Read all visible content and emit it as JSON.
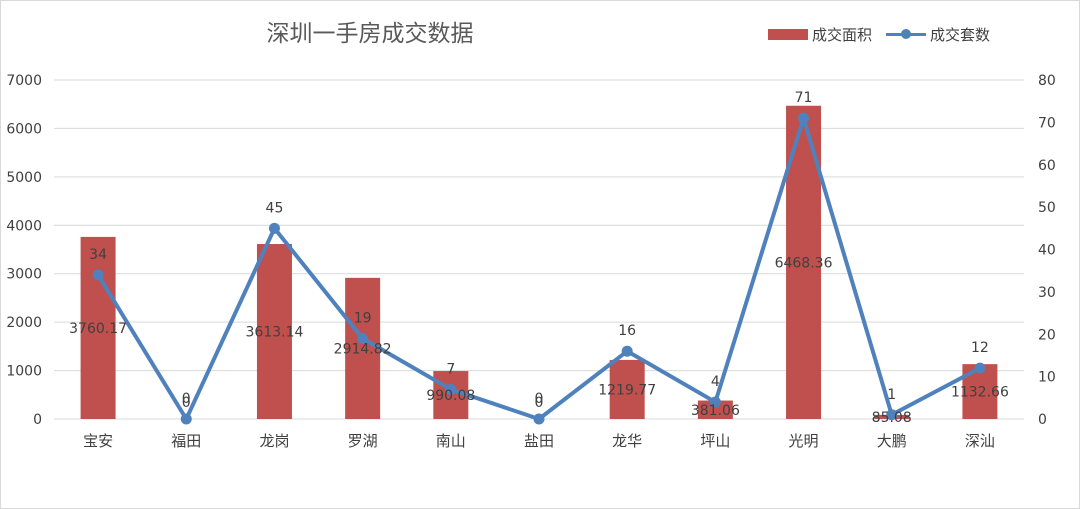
{
  "title": "深圳一手房成交数据",
  "legend": {
    "area_label": "成交面积",
    "count_label": "成交套数"
  },
  "colors": {
    "bar": "#c0504d",
    "line": "#4f81bd",
    "grid": "#d9d9d9",
    "text": "#404040"
  },
  "chart_data": {
    "type": "bar+line",
    "title": "深圳一手房成交数据",
    "categories": [
      "宝安",
      "福田",
      "龙岗",
      "罗湖",
      "南山",
      "盐田",
      "龙华",
      "坪山",
      "光明",
      "大鹏",
      "深汕"
    ],
    "y_left": {
      "ylim": [
        0,
        7000
      ],
      "ticks": [
        0,
        1000,
        2000,
        3000,
        4000,
        5000,
        6000,
        7000
      ]
    },
    "y_right": {
      "ylim": [
        0,
        80
      ],
      "ticks": [
        0,
        10,
        20,
        30,
        40,
        50,
        60,
        70,
        80
      ]
    },
    "grid": true,
    "legend_position": "top-right",
    "series": [
      {
        "name": "成交面积",
        "type": "bar",
        "axis": "left",
        "values": [
          3760.17,
          0,
          3613.14,
          2914.82,
          990.08,
          0,
          1219.77,
          381.06,
          6468.36,
          85.08,
          1132.66
        ],
        "labels": [
          "3760.17",
          "0",
          "3613.14",
          "2914.82",
          "990.08",
          "0",
          "1219.77",
          "381.06",
          "6468.36",
          "85.08",
          "1132.66"
        ]
      },
      {
        "name": "成交套数",
        "type": "line",
        "axis": "right",
        "values": [
          34,
          0,
          45,
          19,
          7,
          0,
          16,
          4,
          71,
          1,
          12
        ],
        "labels": [
          "34",
          "0",
          "45",
          "19",
          "7",
          "0",
          "16",
          "4",
          "71",
          "1",
          "12"
        ]
      }
    ]
  }
}
